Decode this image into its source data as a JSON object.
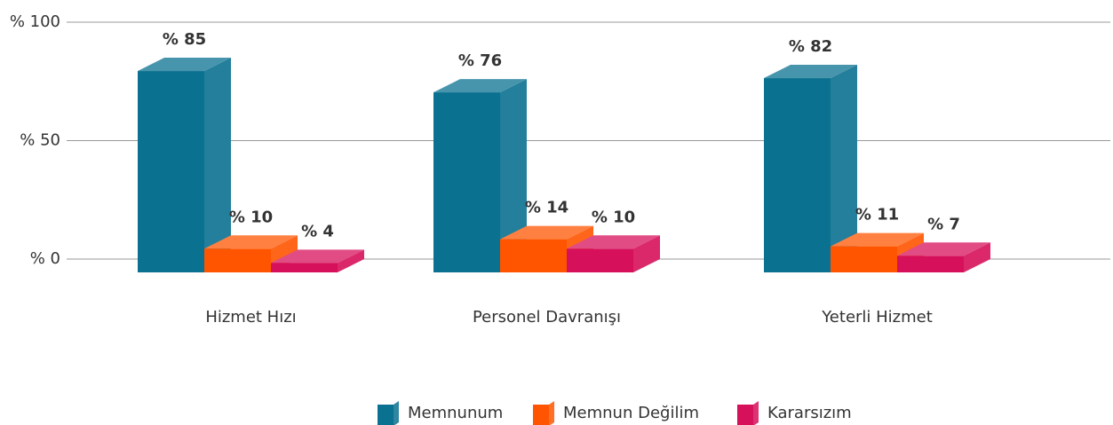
{
  "chart_data": {
    "type": "bar3d",
    "categories": [
      "Hizmet Hızı",
      "Personel Davranışı",
      "Yeterli Hizmet"
    ],
    "series": [
      {
        "name": "Memnunum",
        "color": "#0a7190",
        "values": [
          85,
          76,
          82
        ],
        "value_labels": [
          "% 85",
          "% 76",
          "% 82"
        ]
      },
      {
        "name": "Memnun Değilim",
        "color": "#ff5500",
        "values": [
          10,
          14,
          11
        ],
        "value_labels": [
          "% 10",
          "% 14",
          "% 11"
        ]
      },
      {
        "name": "Kararsızım",
        "color": "#d6105a",
        "values": [
          4,
          10,
          7
        ],
        "value_labels": [
          "% 4",
          "% 10",
          "% 7"
        ]
      }
    ],
    "ylim": [
      0,
      100
    ],
    "yticks": [
      {
        "value": 0,
        "label": "% 0"
      },
      {
        "value": 50,
        "label": "% 50"
      },
      {
        "value": 100,
        "label": "% 100"
      }
    ],
    "grid": true,
    "legend": "bottom"
  }
}
